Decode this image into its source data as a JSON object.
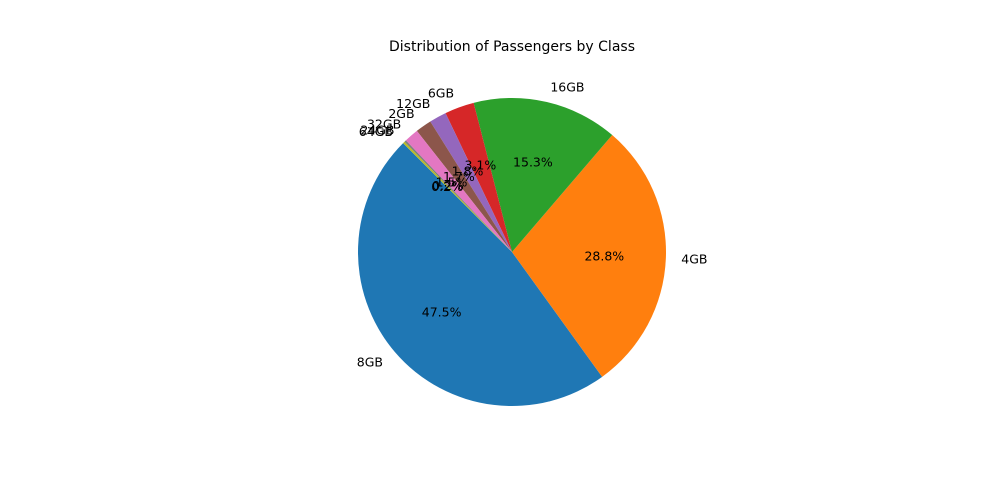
{
  "chart_data": {
    "type": "pie",
    "title": "Distribution of Passengers by Class",
    "start_angle": 135,
    "direction": "counterclockwise",
    "slices": [
      {
        "label": "8GB",
        "pct_label": "47.5%",
        "value": 47.5,
        "color": "#1f77b4"
      },
      {
        "label": "4GB",
        "pct_label": "28.8%",
        "value": 28.8,
        "color": "#ff7f0e"
      },
      {
        "label": "16GB",
        "pct_label": "15.3%",
        "value": 15.3,
        "color": "#2ca02c"
      },
      {
        "label": "6GB",
        "pct_label": "3.1%",
        "value": 3.1,
        "color": "#d62728"
      },
      {
        "label": "12GB",
        "pct_label": "1.8%",
        "value": 1.8,
        "color": "#9467bd"
      },
      {
        "label": "2GB",
        "pct_label": "1.7%",
        "value": 1.7,
        "color": "#8c564b"
      },
      {
        "label": "32GB",
        "pct_label": "1.5%",
        "value": 1.5,
        "color": "#e377c2"
      },
      {
        "label": "24GB",
        "pct_label": "0.2%",
        "value": 0.2,
        "color": "#7f7f7f"
      },
      {
        "label": "64GB",
        "pct_label": "0.2%",
        "value": 0.2,
        "color": "#bcbd22"
      }
    ]
  }
}
